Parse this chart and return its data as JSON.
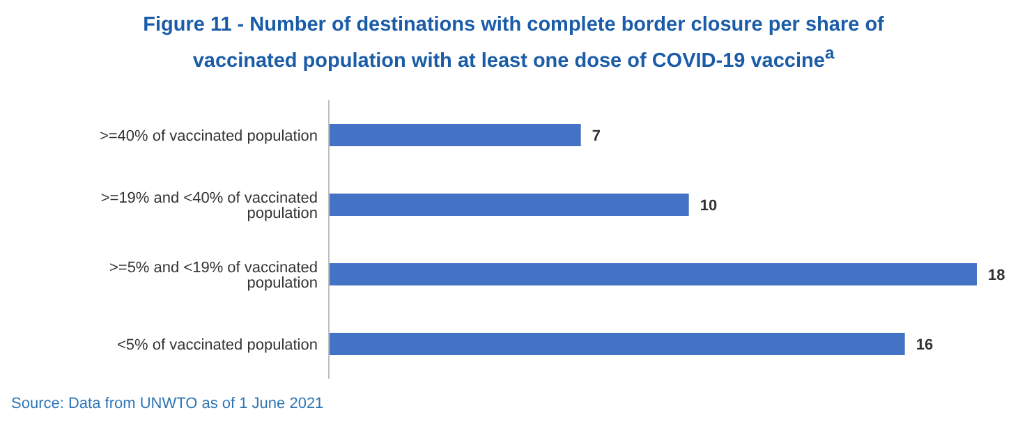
{
  "chart_data": {
    "type": "bar",
    "orientation": "horizontal",
    "title": "Figure 11 - Number of destinations with complete border closure per share of vaccinated population with at least one dose of COVID-19 vaccine$^{a}$",
    "categories": [
      ">=40% of vaccinated population",
      ">=19% and <40% of vaccinated population",
      ">=5% and <19% of vaccinated population",
      "<5% of vaccinated population"
    ],
    "values": [
      7,
      10,
      18,
      16
    ],
    "color": "#4472c4",
    "data_labels": true,
    "legend": false,
    "grid": false,
    "annotations": [
      "Source: Data from UNWTO as of 1 June 2021"
    ]
  }
}
